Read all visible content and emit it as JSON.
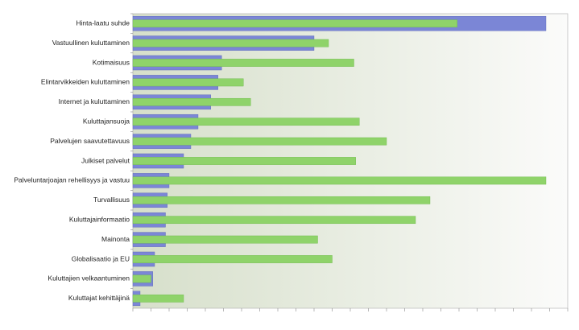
{
  "chart_data": {
    "type": "hbar",
    "categories": [
      "Hinta-laatu suhde",
      "Vastuullinen kuluttaminen",
      "Kotimaisuus",
      "Elintarvikkeiden kuluttaminen",
      "Internet ja kuluttaminen",
      "Kuluttajansuoja",
      "Palvelujen saavutettavuus",
      "Julkiset palvelut",
      "Palveluntarjoajan rehellisyys ja vastuu",
      "Turvallisuus",
      "Kuluttajainformaatio",
      "Mainonta",
      "Globalisaatio ja EU",
      "Kuluttajien velkaantuminen",
      "Kuluttajat kehittäjinä"
    ],
    "series": [
      {
        "color": "#7b86d6",
        "values": [
          22.8,
          10.0,
          4.9,
          4.7,
          4.3,
          3.6,
          3.2,
          2.8,
          2.0,
          1.9,
          1.8,
          1.8,
          1.2,
          1.1,
          0.4
        ]
      },
      {
        "color": "#8fd36a",
        "values": [
          17.9,
          10.8,
          12.2,
          6.1,
          6.5,
          12.5,
          14.0,
          12.3,
          22.8,
          16.4,
          15.6,
          10.2,
          11.0,
          1.0,
          2.8
        ]
      }
    ],
    "xlim": [
      0,
      24
    ],
    "xticks": [
      0,
      1,
      2,
      3,
      4,
      5,
      6,
      7,
      8,
      9,
      10,
      11,
      12,
      13,
      14,
      15,
      16,
      17,
      18,
      19,
      20,
      21,
      22,
      23,
      24
    ]
  }
}
